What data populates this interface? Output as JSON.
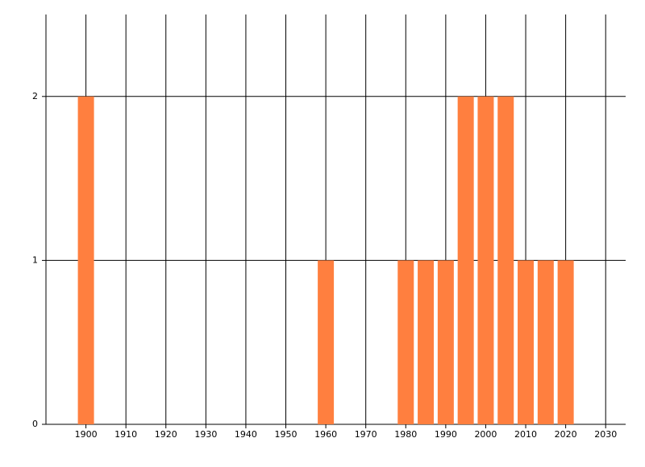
{
  "chart_data": {
    "type": "bar",
    "x": [
      1900,
      1960,
      1980,
      1985,
      1990,
      1995,
      2000,
      2005,
      2010,
      2015,
      2020
    ],
    "values": [
      2,
      1,
      1,
      1,
      1,
      2,
      2,
      2,
      1,
      1,
      1
    ],
    "color": "#ff7f3f",
    "xlim": [
      1890,
      2035
    ],
    "xticks": [
      1900,
      1910,
      1920,
      1930,
      1940,
      1950,
      1960,
      1970,
      1980,
      1990,
      2000,
      2010,
      2020,
      2030
    ],
    "ylim": [
      0,
      2.5
    ],
    "yticks": [
      0,
      1,
      2
    ],
    "grid": true
  }
}
